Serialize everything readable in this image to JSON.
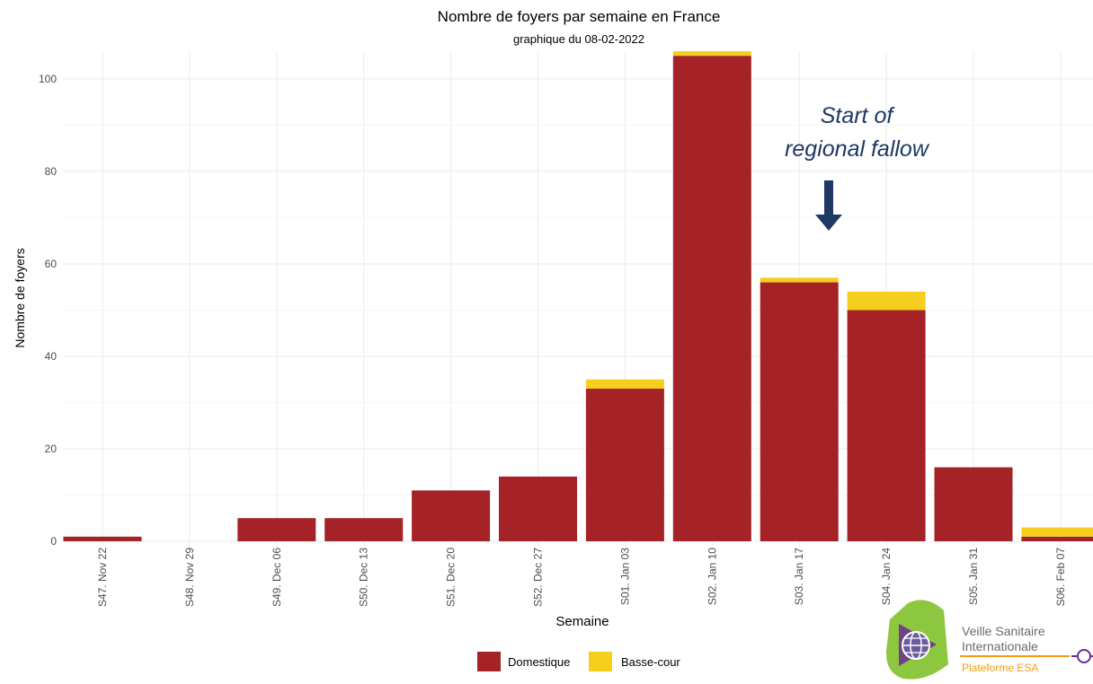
{
  "chart_data": {
    "type": "bar",
    "stacked": true,
    "title": "Nombre de foyers par semaine en France",
    "subtitle": "graphique du 08-02-2022",
    "xlabel": "Semaine",
    "ylabel": "Nombre de foyers",
    "ylim": [
      0,
      106
    ],
    "yticks": [
      0,
      20,
      40,
      60,
      80,
      100
    ],
    "grid": true,
    "legend_position": "bottom",
    "categories": [
      "S47. Nov 22",
      "S48. Nov 29",
      "S49. Dec 06",
      "S50. Dec 13",
      "S51. Dec 20",
      "S52. Dec 27",
      "S01. Jan 03",
      "S02. Jan 10",
      "S03. Jan 17",
      "S04. Jan 24",
      "S05. Jan 31",
      "S06. Feb 07"
    ],
    "series": [
      {
        "name": "Domestique",
        "color": "#a52227",
        "values": [
          1,
          0,
          5,
          5,
          11,
          14,
          33,
          105,
          56,
          50,
          16,
          1
        ]
      },
      {
        "name": "Basse-cour",
        "color": "#f5cf1d",
        "values": [
          0,
          0,
          0,
          0,
          0,
          0,
          2,
          1,
          1,
          4,
          0,
          2
        ]
      }
    ],
    "annotation": {
      "text_line1": "Start of",
      "text_line2": "regional fallow",
      "color": "#1f3864",
      "target_category": "S03. Jan 17"
    }
  },
  "logo": {
    "line1": "Veille Sanitaire",
    "line2": "Internationale",
    "line3": "Plateforme ESA"
  }
}
